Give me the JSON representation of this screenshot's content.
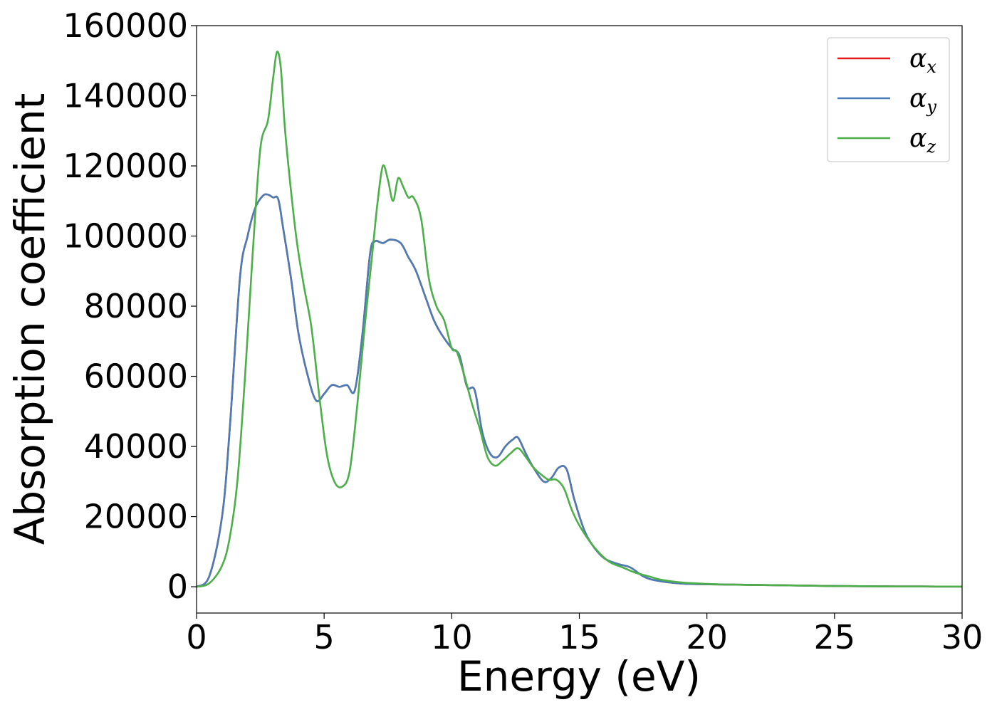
{
  "chart_data": {
    "type": "line",
    "title": "",
    "xlabel": "Energy (eV)",
    "ylabel": "Absorption coefficient",
    "xlim": [
      0,
      30
    ],
    "ylim": [
      -7500,
      160000
    ],
    "xticks": [
      0,
      5,
      10,
      15,
      20,
      25,
      30
    ],
    "yticks": [
      0,
      20000,
      40000,
      60000,
      80000,
      100000,
      120000,
      140000,
      160000
    ],
    "grid": false,
    "legend": "top-right",
    "series": [
      {
        "name": "α_x",
        "symbol": "α",
        "subscript": "x",
        "color": "#e41a1c",
        "x": [
          0,
          0.5,
          1.0,
          1.3,
          1.7,
          2.0,
          2.3,
          2.6,
          2.8,
          3.0,
          3.2,
          3.4,
          3.7,
          4.0,
          4.4,
          4.7,
          5.0,
          5.3,
          5.6,
          5.9,
          6.2,
          6.5,
          6.8,
          7.0,
          7.3,
          7.6,
          8.0,
          8.3,
          8.6,
          9.0,
          9.3,
          9.6,
          10.0,
          10.3,
          10.6,
          10.9,
          11.2,
          11.5,
          11.8,
          12.1,
          12.4,
          12.6,
          12.9,
          13.2,
          13.6,
          13.9,
          14.2,
          14.5,
          14.8,
          15.2,
          15.6,
          16.0,
          16.5,
          17.0,
          17.5,
          18.0,
          19.0,
          20.0,
          21.0,
          22.0,
          23.0,
          24.0,
          25.0,
          26.0,
          27.0,
          28.0,
          29.0,
          30.0
        ],
        "values": [
          0,
          3000,
          20000,
          45000,
          88000,
          100000,
          108000,
          111500,
          111800,
          111000,
          110500,
          102000,
          88000,
          72000,
          59000,
          53000,
          55000,
          57500,
          57000,
          57500,
          56000,
          72000,
          95000,
          98500,
          98000,
          99000,
          98000,
          94000,
          90000,
          82000,
          76000,
          72000,
          68000,
          66000,
          57000,
          56000,
          44000,
          38000,
          37000,
          40000,
          42000,
          42500,
          38000,
          34000,
          30000,
          31000,
          34000,
          33500,
          25000,
          16000,
          11000,
          8000,
          6500,
          5500,
          3000,
          1800,
          900,
          700,
          600,
          500,
          400,
          300,
          200,
          150,
          100,
          80,
          60,
          50
        ]
      },
      {
        "name": "α_y",
        "symbol": "α",
        "subscript": "y",
        "color": "#4a7db7",
        "x": [
          0,
          0.5,
          1.0,
          1.3,
          1.7,
          2.0,
          2.3,
          2.6,
          2.8,
          3.0,
          3.2,
          3.4,
          3.7,
          4.0,
          4.4,
          4.7,
          5.0,
          5.3,
          5.6,
          5.9,
          6.2,
          6.5,
          6.8,
          7.0,
          7.3,
          7.6,
          8.0,
          8.3,
          8.6,
          9.0,
          9.3,
          9.6,
          10.0,
          10.3,
          10.6,
          10.9,
          11.2,
          11.5,
          11.8,
          12.1,
          12.4,
          12.6,
          12.9,
          13.2,
          13.6,
          13.9,
          14.2,
          14.5,
          14.8,
          15.2,
          15.6,
          16.0,
          16.5,
          17.0,
          17.5,
          18.0,
          19.0,
          20.0,
          21.0,
          22.0,
          23.0,
          24.0,
          25.0,
          26.0,
          27.0,
          28.0,
          29.0,
          30.0
        ],
        "values": [
          0,
          3000,
          20000,
          45000,
          88000,
          100000,
          108000,
          111500,
          111800,
          111000,
          110500,
          102000,
          88000,
          72000,
          59000,
          53000,
          55000,
          57500,
          57000,
          57500,
          56000,
          72000,
          95000,
          98500,
          98000,
          99000,
          98000,
          94000,
          90000,
          82000,
          76000,
          72000,
          68000,
          66000,
          57000,
          56000,
          44000,
          38000,
          37000,
          40000,
          42000,
          42500,
          38000,
          34000,
          30000,
          31000,
          34000,
          33500,
          25000,
          16000,
          11000,
          8000,
          6500,
          5500,
          3000,
          1800,
          900,
          700,
          600,
          500,
          400,
          300,
          200,
          150,
          100,
          80,
          60,
          50
        ]
      },
      {
        "name": "α_z",
        "symbol": "α",
        "subscript": "z",
        "color": "#4daf4a",
        "x": [
          0,
          0.5,
          1.0,
          1.3,
          1.6,
          1.9,
          2.2,
          2.5,
          2.8,
          3.0,
          3.15,
          3.3,
          3.45,
          3.6,
          3.9,
          4.2,
          4.5,
          4.8,
          5.1,
          5.4,
          5.7,
          6.0,
          6.3,
          6.6,
          6.9,
          7.1,
          7.3,
          7.5,
          7.7,
          7.9,
          8.1,
          8.3,
          8.5,
          8.8,
          9.1,
          9.4,
          9.7,
          10.0,
          10.2,
          10.5,
          10.8,
          11.1,
          11.4,
          11.7,
          12.0,
          12.3,
          12.6,
          12.9,
          13.2,
          13.5,
          13.8,
          14.1,
          14.4,
          14.7,
          15.0,
          15.4,
          15.8,
          16.2,
          16.7,
          17.2,
          17.7,
          18.2,
          19.0,
          20.0,
          21.0,
          22.0,
          23.0,
          24.0,
          25.0,
          26.0,
          27.0,
          28.0,
          29.0,
          30.0
        ],
        "values": [
          0,
          1000,
          6000,
          14000,
          30000,
          60000,
          95000,
          125000,
          133000,
          145000,
          152500,
          148000,
          132000,
          120000,
          100000,
          86000,
          74000,
          55000,
          38000,
          30000,
          28500,
          33000,
          52000,
          75000,
          96000,
          110000,
          120000,
          116000,
          110000,
          116500,
          114000,
          111000,
          111000,
          105000,
          88000,
          80000,
          76000,
          68000,
          67000,
          60000,
          52000,
          45000,
          37000,
          34500,
          36000,
          38000,
          39500,
          37000,
          34000,
          32000,
          30500,
          30500,
          28000,
          22000,
          17500,
          13000,
          9500,
          7000,
          5500,
          4000,
          3000,
          2000,
          1200,
          800,
          600,
          500,
          400,
          300,
          200,
          150,
          100,
          80,
          60,
          50
        ]
      }
    ]
  }
}
